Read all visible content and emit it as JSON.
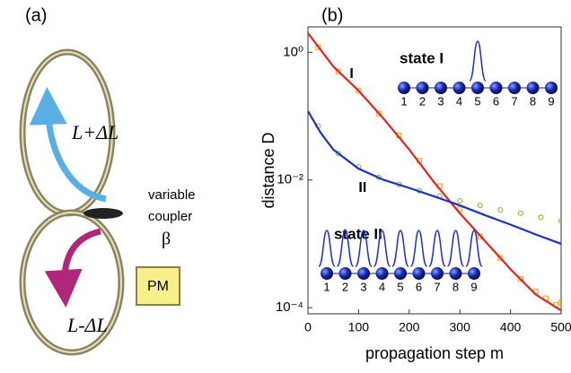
{
  "panel_a": {
    "label": "(a)",
    "upper_loop": "L+ΔL",
    "lower_loop": "L-ΔL",
    "coupler_lines": [
      "variable",
      "coupler"
    ],
    "coupler_symbol": "β",
    "modulator": "PM"
  },
  "chart_data": {
    "type": "line",
    "panel_label": "(b)",
    "x_label": "propagation step m",
    "y_label": "distance D",
    "log_y": true,
    "xlim": [
      0,
      500
    ],
    "xticks": [
      0,
      100,
      200,
      300,
      400,
      500
    ],
    "ylim": [
      8e-05,
      2.5
    ],
    "yticks": [
      {
        "value": 1,
        "label": "10⁰"
      },
      {
        "value": 0.01,
        "label": "10⁻²"
      },
      {
        "value": 0.0001,
        "label": "10⁻⁴"
      }
    ],
    "series": [
      {
        "style": "markers",
        "color": "#8cbf3f",
        "x": [
          20,
          60,
          100,
          140,
          180,
          220,
          260,
          300,
          340,
          380,
          420,
          460,
          500
        ],
        "values": [
          0.07,
          0.026,
          0.016,
          0.011,
          0.0085,
          0.0068,
          0.0056,
          0.0047,
          0.004,
          0.0034,
          0.003,
          0.0026,
          0.0023
        ]
      },
      {
        "style": "markers",
        "color": "#f0a830",
        "x": [
          20,
          60,
          100,
          140,
          180,
          220,
          260,
          300,
          340,
          380,
          420,
          450,
          470,
          490,
          500
        ],
        "values": [
          1.2,
          0.5,
          0.25,
          0.11,
          0.05,
          0.02,
          0.008,
          0.0035,
          0.0013,
          0.0006,
          0.00028,
          0.00018,
          0.00014,
          0.00011,
          0.00012
        ]
      },
      {
        "style": "line",
        "color": "#e8231c",
        "x": [
          0,
          50,
          100,
          150,
          200,
          250,
          300,
          350,
          400,
          450,
          500
        ],
        "values": [
          2,
          0.6,
          0.25,
          0.09,
          0.03,
          0.009,
          0.003,
          0.0011,
          0.0004,
          0.00016,
          9e-05
        ]
      },
      {
        "style": "line",
        "color": "#1f2fcf",
        "x": [
          0,
          25,
          50,
          100,
          150,
          200,
          250,
          300,
          350,
          400,
          450,
          500
        ],
        "values": [
          0.12,
          0.055,
          0.03,
          0.015,
          0.01,
          0.0075,
          0.0055,
          0.004,
          0.0028,
          0.002,
          0.0014,
          0.001
        ]
      }
    ],
    "annotations": [
      {
        "text": "I",
        "x": 100,
        "y": 0.45
      },
      {
        "text": "II",
        "x": 100,
        "y": 0.0075
      }
    ],
    "insets": [
      {
        "title": "state I",
        "sites": [
          1,
          2,
          3,
          4,
          5,
          6,
          7,
          8,
          9
        ],
        "peaks": [
          5
        ]
      },
      {
        "title": "state II",
        "sites": [
          1,
          2,
          3,
          4,
          5,
          6,
          7,
          8,
          9
        ],
        "peaks": [
          1,
          2,
          3,
          4,
          5,
          6,
          7,
          8,
          9
        ]
      }
    ]
  }
}
